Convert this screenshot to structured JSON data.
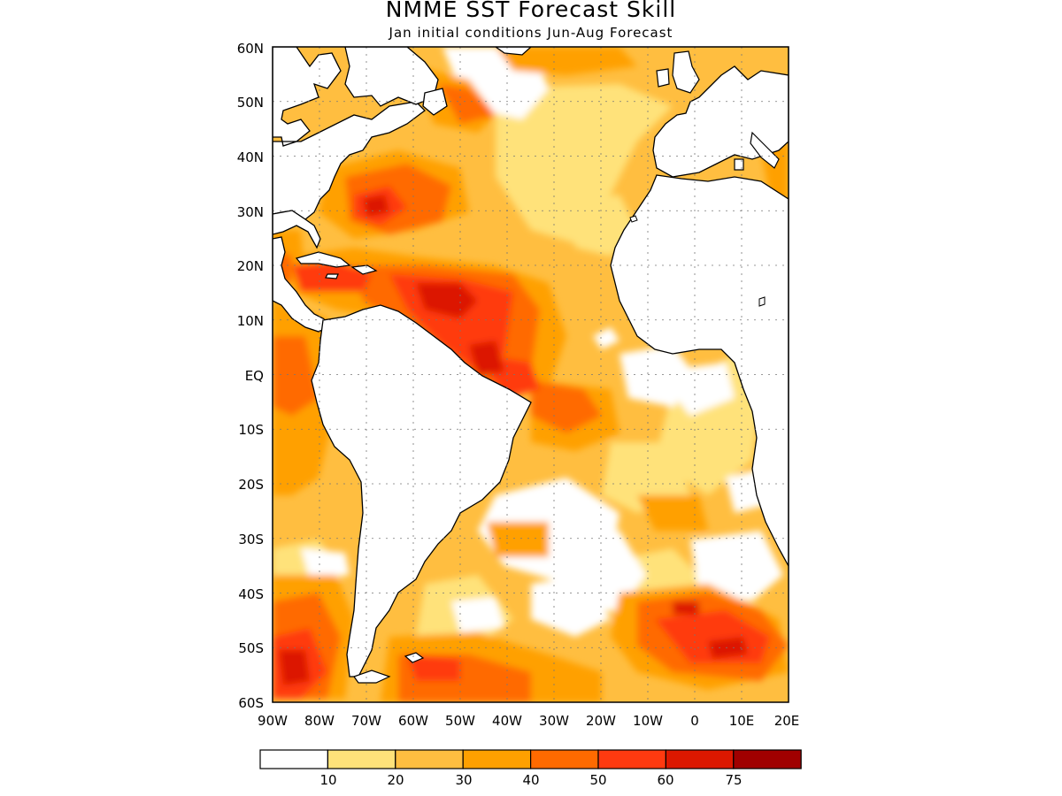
{
  "title": "NMME SST Forecast Skill",
  "subtitle": "Jan initial conditions  Jun-Aug Forecast",
  "map": {
    "region": "Atlantic Ocean",
    "lon_range": [
      -90,
      20
    ],
    "lat_range": [
      -60,
      60
    ],
    "gridlines": "dotted",
    "lat_labels": [
      "60N",
      "50N",
      "40N",
      "30N",
      "20N",
      "10N",
      "EQ",
      "10S",
      "20S",
      "30S",
      "40S",
      "50S",
      "60S"
    ],
    "lon_labels": [
      "90W",
      "80W",
      "70W",
      "60W",
      "50W",
      "40W",
      "30W",
      "20W",
      "10W",
      "0",
      "10E",
      "20E"
    ]
  },
  "colorbar": {
    "thresholds": [
      "10",
      "20",
      "30",
      "40",
      "50",
      "60",
      "75"
    ],
    "colors": [
      "#ffffff",
      "#ffe27a",
      "#ffbe40",
      "#ffa000",
      "#ff6a00",
      "#ff3a10",
      "#dc1800",
      "#a00000"
    ]
  },
  "colors": {
    "land": "#ffffff",
    "coastline": "#000000"
  }
}
